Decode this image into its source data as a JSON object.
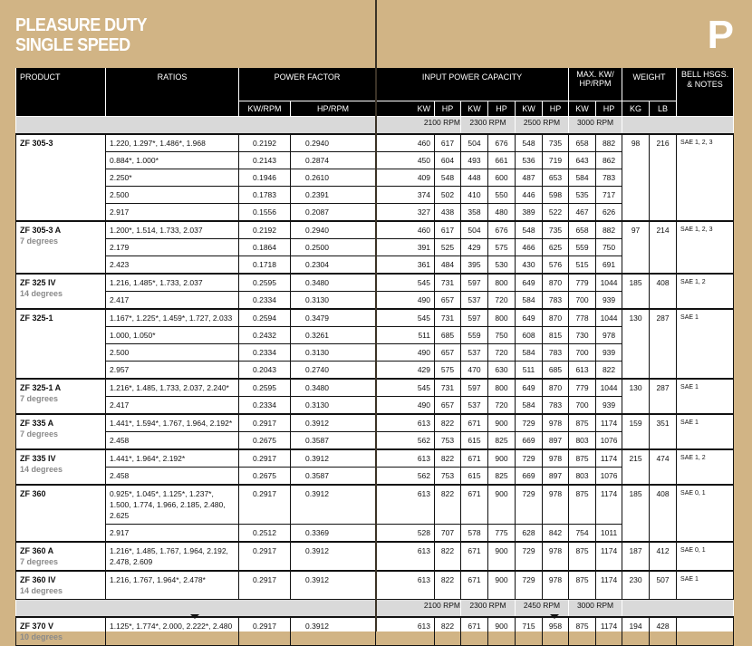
{
  "header": {
    "title_line1": "PLEASURE DUTY",
    "title_line2": "SINGLE SPEED",
    "section_letter": "P"
  },
  "columns": {
    "product": "PRODUCT",
    "ratios": "RATIOS",
    "power_factor": "POWER FACTOR",
    "kw_rpm": "KW/RPM",
    "hp_rpm": "HP/RPM",
    "input_power": "INPUT POWER CAPACITY",
    "max": "MAX. KW/ HP/RPM",
    "weight": "WEIGHT",
    "notes": "BELL HSGS. & NOTES",
    "kw": "KW",
    "hp": "HP",
    "kg": "KG",
    "lb": "LB"
  },
  "sections": [
    {
      "rpm": [
        "2100 RPM",
        "2300 RPM",
        "2500 RPM",
        "3000 RPM"
      ],
      "groups": [
        {
          "product": "ZF 305-3",
          "subtitle": "",
          "kg": "98",
          "lb": "216",
          "notes": "SAE 1, 2, 3",
          "rows": [
            {
              "ratios": "1.220, 1.297*, 1.486*, 1.968",
              "kw_rpm": "0.2192",
              "hp_rpm": "0.2940",
              "values": [
                "460",
                "617",
                "504",
                "676",
                "548",
                "735",
                "658",
                "882"
              ]
            },
            {
              "ratios": "0.884*, 1.000*",
              "kw_rpm": "0.2143",
              "hp_rpm": "0.2874",
              "values": [
                "450",
                "604",
                "493",
                "661",
                "536",
                "719",
                "643",
                "862"
              ]
            },
            {
              "ratios": "2.250*",
              "kw_rpm": "0.1946",
              "hp_rpm": "0.2610",
              "values": [
                "409",
                "548",
                "448",
                "600",
                "487",
                "653",
                "584",
                "783"
              ]
            },
            {
              "ratios": "2.500",
              "kw_rpm": "0.1783",
              "hp_rpm": "0.2391",
              "values": [
                "374",
                "502",
                "410",
                "550",
                "446",
                "598",
                "535",
                "717"
              ]
            },
            {
              "ratios": "2.917",
              "kw_rpm": "0.1556",
              "hp_rpm": "0.2087",
              "values": [
                "327",
                "438",
                "358",
                "480",
                "389",
                "522",
                "467",
                "626"
              ]
            }
          ]
        },
        {
          "product": "ZF 305-3 A",
          "subtitle": "7 degrees",
          "kg": "97",
          "lb": "214",
          "notes": "SAE 1, 2, 3",
          "rows": [
            {
              "ratios": "1.200*, 1.514, 1.733, 2.037",
              "kw_rpm": "0.2192",
              "hp_rpm": "0.2940",
              "values": [
                "460",
                "617",
                "504",
                "676",
                "548",
                "735",
                "658",
                "882"
              ]
            },
            {
              "ratios": "2.179",
              "kw_rpm": "0.1864",
              "hp_rpm": "0.2500",
              "values": [
                "391",
                "525",
                "429",
                "575",
                "466",
                "625",
                "559",
                "750"
              ]
            },
            {
              "ratios": "2.423",
              "kw_rpm": "0.1718",
              "hp_rpm": "0.2304",
              "values": [
                "361",
                "484",
                "395",
                "530",
                "430",
                "576",
                "515",
                "691"
              ]
            }
          ]
        },
        {
          "product": "ZF 325 IV",
          "subtitle": "14 degrees",
          "kg": "185",
          "lb": "408",
          "notes": "SAE 1, 2",
          "rows": [
            {
              "ratios": "1.216, 1.485*, 1.733, 2.037",
              "kw_rpm": "0.2595",
              "hp_rpm": "0.3480",
              "values": [
                "545",
                "731",
                "597",
                "800",
                "649",
                "870",
                "779",
                "1044"
              ]
            },
            {
              "ratios": "2.417",
              "kw_rpm": "0.2334",
              "hp_rpm": "0.3130",
              "values": [
                "490",
                "657",
                "537",
                "720",
                "584",
                "783",
                "700",
                "939"
              ]
            }
          ]
        },
        {
          "product": "ZF 325-1",
          "subtitle": "",
          "kg": "130",
          "lb": "287",
          "notes": "SAE 1",
          "rows": [
            {
              "ratios": "1.167*, 1.225*, 1.459*, 1.727, 2.033",
              "kw_rpm": "0.2594",
              "hp_rpm": "0.3479",
              "values": [
                "545",
                "731",
                "597",
                "800",
                "649",
                "870",
                "778",
                "1044"
              ]
            },
            {
              "ratios": "1.000, 1.050*",
              "kw_rpm": "0.2432",
              "hp_rpm": "0.3261",
              "values": [
                "511",
                "685",
                "559",
                "750",
                "608",
                "815",
                "730",
                "978"
              ]
            },
            {
              "ratios": "2.500",
              "kw_rpm": "0.2334",
              "hp_rpm": "0.3130",
              "values": [
                "490",
                "657",
                "537",
                "720",
                "584",
                "783",
                "700",
                "939"
              ]
            },
            {
              "ratios": "2.957",
              "kw_rpm": "0.2043",
              "hp_rpm": "0.2740",
              "values": [
                "429",
                "575",
                "470",
                "630",
                "511",
                "685",
                "613",
                "822"
              ]
            }
          ]
        },
        {
          "product": "ZF 325-1 A",
          "subtitle": "7 degrees",
          "kg": "130",
          "lb": "287",
          "notes": "SAE 1",
          "rows": [
            {
              "ratios": "1.216*, 1.485, 1.733, 2.037, 2.240*",
              "kw_rpm": "0.2595",
              "hp_rpm": "0.3480",
              "values": [
                "545",
                "731",
                "597",
                "800",
                "649",
                "870",
                "779",
                "1044"
              ]
            },
            {
              "ratios": "2.417",
              "kw_rpm": "0.2334",
              "hp_rpm": "0.3130",
              "values": [
                "490",
                "657",
                "537",
                "720",
                "584",
                "783",
                "700",
                "939"
              ]
            }
          ]
        },
        {
          "product": "ZF 335 A",
          "subtitle": "7 degrees",
          "kg": "159",
          "lb": "351",
          "notes": "SAE 1",
          "rows": [
            {
              "ratios": "1.441*, 1.594*, 1.767, 1.964, 2.192*",
              "kw_rpm": "0.2917",
              "hp_rpm": "0.3912",
              "values": [
                "613",
                "822",
                "671",
                "900",
                "729",
                "978",
                "875",
                "1174"
              ]
            },
            {
              "ratios": "2.458",
              "kw_rpm": "0.2675",
              "hp_rpm": "0.3587",
              "values": [
                "562",
                "753",
                "615",
                "825",
                "669",
                "897",
                "803",
                "1076"
              ]
            }
          ]
        },
        {
          "product": "ZF 335 IV",
          "subtitle": "14 degrees",
          "kg": "215",
          "lb": "474",
          "notes": "SAE 1, 2",
          "rows": [
            {
              "ratios": "1.441*, 1.964*, 2.192*",
              "kw_rpm": "0.2917",
              "hp_rpm": "0.3912",
              "values": [
                "613",
                "822",
                "671",
                "900",
                "729",
                "978",
                "875",
                "1174"
              ]
            },
            {
              "ratios": "2.458",
              "kw_rpm": "0.2675",
              "hp_rpm": "0.3587",
              "values": [
                "562",
                "753",
                "615",
                "825",
                "669",
                "897",
                "803",
                "1076"
              ]
            }
          ]
        },
        {
          "product": "ZF 360",
          "subtitle": "",
          "kg": "185",
          "lb": "408",
          "notes": "SAE 0, 1",
          "rows": [
            {
              "ratios": "0.925*, 1.045*, 1.125*, 1.237*, 1.500, 1.774, 1.966, 2.185, 2.480, 2.625",
              "kw_rpm": "0.2917",
              "hp_rpm": "0.3912",
              "values": [
                "613",
                "822",
                "671",
                "900",
                "729",
                "978",
                "875",
                "1174"
              ]
            },
            {
              "ratios": "2.917",
              "kw_rpm": "0.2512",
              "hp_rpm": "0.3369",
              "values": [
                "528",
                "707",
                "578",
                "775",
                "628",
                "842",
                "754",
                "1011"
              ]
            }
          ]
        },
        {
          "product": "ZF 360 A",
          "subtitle": "7 degrees",
          "kg": "187",
          "lb": "412",
          "notes": "SAE 0, 1",
          "rows": [
            {
              "ratios": "1.216*, 1.485, 1.767, 1.964, 2.192, 2.478, 2.609",
              "kw_rpm": "0.2917",
              "hp_rpm": "0.3912",
              "values": [
                "613",
                "822",
                "671",
                "900",
                "729",
                "978",
                "875",
                "1174"
              ]
            }
          ]
        },
        {
          "product": "ZF 360 IV",
          "subtitle": "14 degrees",
          "kg": "230",
          "lb": "507",
          "notes": "SAE 1",
          "rows": [
            {
              "ratios": "1.216, 1.767, 1.964*, 2.478*",
              "kw_rpm": "0.2917",
              "hp_rpm": "0.3912",
              "values": [
                "613",
                "822",
                "671",
                "900",
                "729",
                "978",
                "875",
                "1174"
              ]
            }
          ]
        }
      ]
    },
    {
      "rpm": [
        "2100 RPM",
        "2300 RPM",
        "2450 RPM",
        "3000 RPM"
      ],
      "groups": [
        {
          "product": "ZF 370 V",
          "subtitle": "10 degrees",
          "kg": "194",
          "lb": "428",
          "notes": "",
          "rows": [
            {
              "ratios": "1.125*, 1.774*, 2.000, 2.222*, 2.480",
              "kw_rpm": "0.2917",
              "hp_rpm": "0.3912",
              "values": [
                "613",
                "822",
                "671",
                "900",
                "715",
                "958",
                "875",
                "1174"
              ]
            }
          ]
        }
      ]
    }
  ]
}
